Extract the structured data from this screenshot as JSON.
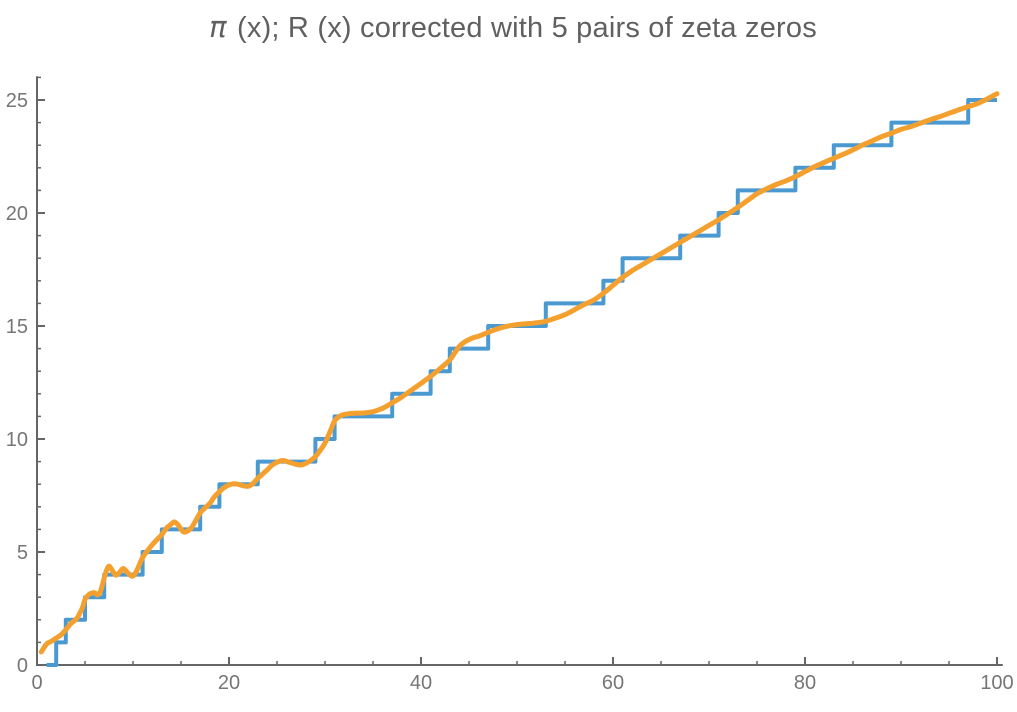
{
  "title": {
    "symbol": "π",
    "text": " (x); R (x) corrected with 5 pairs of zeta zeros"
  },
  "colors": {
    "background": "#ffffff",
    "axis": "#666666",
    "tick_label": "#767676",
    "title": "#606060",
    "pi_step": "#4a99d1",
    "riemann_curve": "#f4a02f"
  },
  "chart_data": {
    "type": "line",
    "title": "π (x); R (x) corrected with 5 pairs of zeta zeros",
    "xlabel": "",
    "ylabel": "",
    "xlim": [
      0,
      100.6
    ],
    "ylim": [
      0,
      26.05
    ],
    "grid": false,
    "legend": "none",
    "x_ticks_major": [
      0,
      20,
      40,
      60,
      80,
      100
    ],
    "x_tick_labels": [
      "0",
      "20",
      "40",
      "60",
      "80",
      "100"
    ],
    "x_tick_minor_step": 5,
    "y_ticks_major": [
      0,
      5,
      10,
      15,
      20,
      25
    ],
    "y_tick_labels": [
      "0",
      "5",
      "10",
      "15",
      "20",
      "25"
    ],
    "y_tick_minor_step": 1,
    "series": [
      {
        "name": "pi(x) prime counting staircase",
        "style": "step",
        "color": "#4a99d1",
        "stroke_width": 4,
        "start_x": 1,
        "end_x": 100,
        "primes": [
          2,
          3,
          5,
          7,
          11,
          13,
          17,
          19,
          23,
          29,
          31,
          37,
          41,
          43,
          47,
          53,
          59,
          61,
          67,
          71,
          73,
          79,
          83,
          89,
          97
        ]
      },
      {
        "name": "R(x) corrected with 5 pairs of zeta zeros",
        "style": "smooth",
        "color": "#f4a02f",
        "stroke_width": 5,
        "points": [
          [
            0.45,
            0.58
          ],
          [
            1,
            0.93
          ],
          [
            1.5,
            1.05
          ],
          [
            2,
            1.19
          ],
          [
            2.5,
            1.33
          ],
          [
            3,
            1.56
          ],
          [
            3.5,
            1.82
          ],
          [
            4,
            2.0
          ],
          [
            4.25,
            2.12
          ],
          [
            4.5,
            2.33
          ],
          [
            4.75,
            2.55
          ],
          [
            5,
            2.9
          ],
          [
            5.25,
            3.05
          ],
          [
            5.5,
            3.15
          ],
          [
            6,
            3.2
          ],
          [
            6.3,
            3.1
          ],
          [
            6.6,
            3.25
          ],
          [
            7,
            3.85
          ],
          [
            7.25,
            4.2
          ],
          [
            7.5,
            4.37
          ],
          [
            7.75,
            4.25
          ],
          [
            8.2,
            3.98
          ],
          [
            8.6,
            4.1
          ],
          [
            9,
            4.27
          ],
          [
            9.4,
            4.1
          ],
          [
            9.9,
            3.93
          ],
          [
            10.3,
            4.1
          ],
          [
            11,
            4.75
          ],
          [
            11.5,
            5.05
          ],
          [
            12,
            5.32
          ],
          [
            12.5,
            5.55
          ],
          [
            13,
            5.77
          ],
          [
            13.5,
            6.06
          ],
          [
            14,
            6.24
          ],
          [
            14.3,
            6.33
          ],
          [
            14.7,
            6.2
          ],
          [
            15.1,
            5.95
          ],
          [
            15.4,
            5.88
          ],
          [
            16,
            6.03
          ],
          [
            16.5,
            6.36
          ],
          [
            17,
            6.73
          ],
          [
            17.5,
            6.95
          ],
          [
            18,
            7.15
          ],
          [
            18.5,
            7.45
          ],
          [
            19,
            7.67
          ],
          [
            19.5,
            7.85
          ],
          [
            20,
            7.97
          ],
          [
            20.5,
            8.02
          ],
          [
            21,
            7.99
          ],
          [
            21.5,
            7.93
          ],
          [
            22,
            7.91
          ],
          [
            22.5,
            8.03
          ],
          [
            23,
            8.26
          ],
          [
            23.5,
            8.45
          ],
          [
            24,
            8.64
          ],
          [
            24.5,
            8.85
          ],
          [
            25,
            8.97
          ],
          [
            25.6,
            9.05
          ],
          [
            26.2,
            8.98
          ],
          [
            27,
            8.88
          ],
          [
            27.5,
            8.85
          ],
          [
            28,
            8.92
          ],
          [
            28.5,
            9.05
          ],
          [
            29,
            9.22
          ],
          [
            29.5,
            9.5
          ],
          [
            30,
            9.82
          ],
          [
            30.5,
            10.3
          ],
          [
            31,
            10.8
          ],
          [
            31.5,
            11.0
          ],
          [
            32,
            11.09
          ],
          [
            33,
            11.14
          ],
          [
            34,
            11.15
          ],
          [
            35,
            11.21
          ],
          [
            36,
            11.36
          ],
          [
            37,
            11.6
          ],
          [
            38,
            11.86
          ],
          [
            39,
            12.16
          ],
          [
            40,
            12.46
          ],
          [
            41,
            12.77
          ],
          [
            42,
            13.12
          ],
          [
            43,
            13.5
          ],
          [
            43.5,
            13.8
          ],
          [
            44,
            14.1
          ],
          [
            44.5,
            14.28
          ],
          [
            45,
            14.4
          ],
          [
            45.5,
            14.49
          ],
          [
            46,
            14.55
          ],
          [
            47,
            14.72
          ],
          [
            48,
            14.88
          ],
          [
            49,
            14.99
          ],
          [
            50,
            15.06
          ],
          [
            51,
            15.1
          ],
          [
            52,
            15.14
          ],
          [
            53,
            15.21
          ],
          [
            54,
            15.35
          ],
          [
            55,
            15.5
          ],
          [
            56,
            15.72
          ],
          [
            57,
            15.95
          ],
          [
            58,
            16.15
          ],
          [
            59,
            16.45
          ],
          [
            60,
            16.8
          ],
          [
            61,
            17.15
          ],
          [
            62,
            17.45
          ],
          [
            63,
            17.7
          ],
          [
            64,
            17.95
          ],
          [
            65,
            18.2
          ],
          [
            66,
            18.45
          ],
          [
            67,
            18.7
          ],
          [
            68,
            18.95
          ],
          [
            69,
            19.2
          ],
          [
            70,
            19.45
          ],
          [
            71,
            19.7
          ],
          [
            72,
            19.97
          ],
          [
            73,
            20.25
          ],
          [
            74,
            20.55
          ],
          [
            75,
            20.85
          ],
          [
            76,
            21.07
          ],
          [
            77,
            21.26
          ],
          [
            78,
            21.42
          ],
          [
            79,
            21.61
          ],
          [
            80,
            21.83
          ],
          [
            81,
            22.05
          ],
          [
            82,
            22.24
          ],
          [
            83,
            22.42
          ],
          [
            84,
            22.6
          ],
          [
            85,
            22.79
          ],
          [
            86,
            23.01
          ],
          [
            87,
            23.19
          ],
          [
            88,
            23.38
          ],
          [
            89,
            23.53
          ],
          [
            90,
            23.7
          ],
          [
            91,
            23.82
          ],
          [
            92,
            23.97
          ],
          [
            93,
            24.12
          ],
          [
            94,
            24.26
          ],
          [
            95,
            24.41
          ],
          [
            96,
            24.56
          ],
          [
            97,
            24.71
          ],
          [
            98,
            24.85
          ],
          [
            99,
            25.05
          ],
          [
            100,
            25.28
          ]
        ]
      }
    ]
  }
}
